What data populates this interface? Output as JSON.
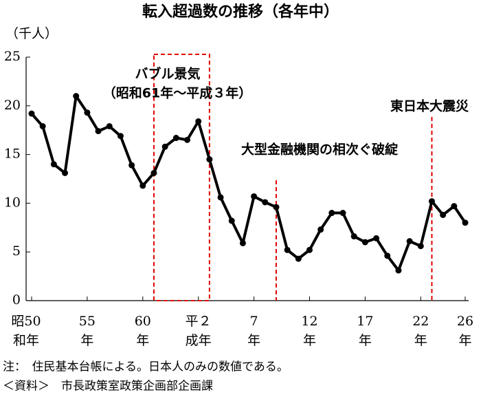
{
  "chart_data": {
    "type": "line",
    "title": "転入超過数の推移（各年中）",
    "y_label": "（千人）",
    "categories": [
      [
        "昭50",
        "和年"
      ],
      null,
      null,
      null,
      null,
      [
        "55",
        "年"
      ],
      null,
      null,
      null,
      null,
      [
        "60",
        "年"
      ],
      null,
      null,
      null,
      null,
      [
        "平２",
        "成年"
      ],
      null,
      null,
      null,
      null,
      [
        "7",
        "年"
      ],
      null,
      null,
      null,
      null,
      [
        "12",
        "年"
      ],
      null,
      null,
      null,
      null,
      [
        "17",
        "年"
      ],
      null,
      null,
      null,
      null,
      [
        "22",
        "年"
      ],
      null,
      null,
      null,
      [
        "26",
        "年"
      ]
    ],
    "series": [
      {
        "color": "#000000",
        "values": [
          19.2,
          17.9,
          14.0,
          13.1,
          21.0,
          19.3,
          17.4,
          17.9,
          16.9,
          13.9,
          11.8,
          13.1,
          15.8,
          16.7,
          16.5,
          18.4,
          14.5,
          10.6,
          8.2,
          5.9,
          10.7,
          10.1,
          9.6,
          5.2,
          4.3,
          5.2,
          7.3,
          9.0,
          9.0,
          6.6,
          6.0,
          6.4,
          4.6,
          3.1,
          6.1,
          5.6,
          10.2,
          8.8,
          9.7,
          8.0
        ]
      }
    ],
    "ylim": [
      0,
      25
    ],
    "yticks": [
      0,
      5,
      10,
      15,
      20,
      25
    ],
    "annotation_color": "#e00000",
    "box_annotation": {
      "from": 11,
      "to": 16,
      "lines": [
        "バブル景気",
        "（昭和61年～平成３年）"
      ]
    },
    "line_annotations": [
      {
        "at": 22,
        "text": "大型金融機関の相次ぐ破綻"
      },
      {
        "at": 36,
        "text": "東日本大震災"
      }
    ],
    "notes": [
      "注：　住民基本台帳による。日本人のみの数値である。",
      "＜資料＞　市長政策室政策企画部企画課"
    ]
  }
}
